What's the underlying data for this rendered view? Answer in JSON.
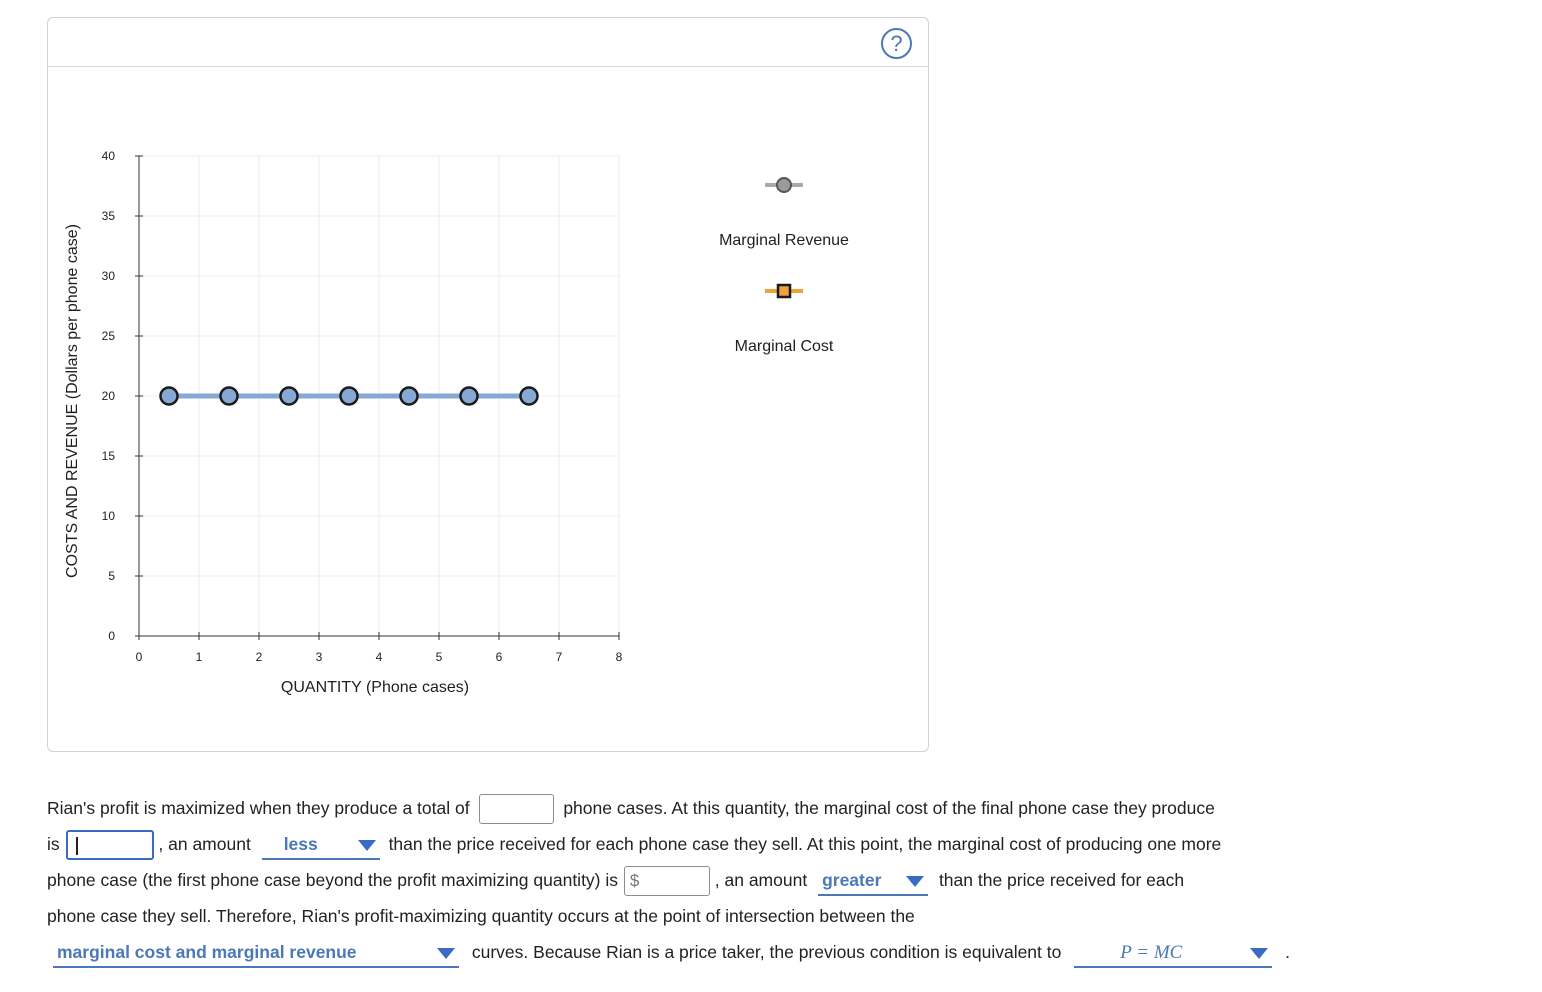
{
  "help": {
    "label": "?"
  },
  "chart_data": {
    "type": "line",
    "xlabel": "QUANTITY (Phone cases)",
    "ylabel": "COSTS AND REVENUE (Dollars per phone case)",
    "xlim": [
      0,
      8
    ],
    "ylim": [
      0,
      40
    ],
    "x_ticks": [
      0,
      1,
      2,
      3,
      4,
      5,
      6,
      7,
      8
    ],
    "y_ticks": [
      0,
      5,
      10,
      15,
      20,
      25,
      30,
      35,
      40
    ],
    "grid": true,
    "series": [
      {
        "name": "Marginal Revenue",
        "color": "#86a8d4",
        "marker": "circle",
        "x": [
          0.5,
          1.5,
          2.5,
          3.5,
          4.5,
          5.5,
          6.5
        ],
        "y": [
          20,
          20,
          20,
          20,
          20,
          20,
          20
        ]
      },
      {
        "name": "Marginal Cost",
        "color": "#f0a23a",
        "marker": "square",
        "x": [],
        "y": []
      }
    ],
    "legend": [
      {
        "label": "Marginal Revenue",
        "marker": "circle",
        "line_color": "#a9a9a9",
        "fill": "#9a9a9a"
      },
      {
        "label": "Marginal Cost",
        "marker": "square",
        "line_color": "#f0a23a",
        "fill": "#f0a23a"
      }
    ]
  },
  "question": {
    "l1_text1": "Rian's profit is maximized when they produce a total of",
    "l1_text2": "phone cases. At this quantity, the marginal cost of the final phone case they produce",
    "l2_text1": "is",
    "l2_text2": ", an amount",
    "dd1_value": "less",
    "l2_text3": "than the price received for each phone case they sell. At this point, the marginal cost of producing one more",
    "l3_text1": "phone case (the first phone case beyond the profit maximizing quantity) is",
    "dollar_sign": "$",
    "l3_text2": ", an amount",
    "dd2_value": "greater",
    "l3_text3": "than the price received for each",
    "l4_text1": "phone case they sell. Therefore, Rian's profit-maximizing quantity occurs at the point of intersection between the",
    "dd3_value": "marginal cost and marginal revenue",
    "l5_text1": "curves. Because Rian is a price taker, the previous condition is equivalent to",
    "dd4_value": "P = MC",
    "l5_end": "."
  }
}
